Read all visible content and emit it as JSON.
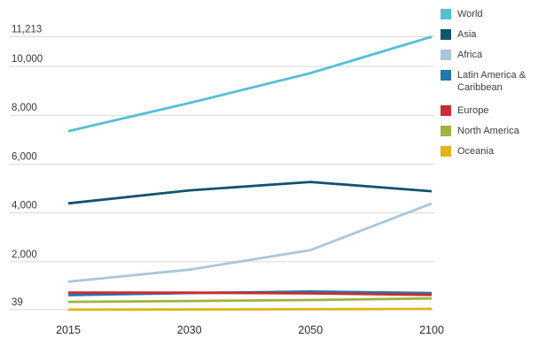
{
  "chart_data": {
    "type": "line",
    "title": "",
    "x_categories": [
      "2015",
      "2030",
      "2050",
      "2100"
    ],
    "series": [
      {
        "name": "World",
        "color": "#55c0d4",
        "values": [
          7349,
          8501,
          9725,
          11213
        ]
      },
      {
        "name": "Asia",
        "color": "#14536e",
        "values": [
          4393,
          4923,
          5267,
          4889
        ]
      },
      {
        "name": "Africa",
        "color": "#a9c7db",
        "values": [
          1186,
          1679,
          2478,
          4387
        ]
      },
      {
        "name": "Latin America & Caribbean",
        "color": "#2478a4",
        "values": [
          634,
          721,
          784,
          721
        ]
      },
      {
        "name": "Europe",
        "color": "#cd2c36",
        "values": [
          738,
          734,
          707,
          646
        ]
      },
      {
        "name": "North America",
        "color": "#a1b33d",
        "values": [
          358,
          396,
          433,
          500
        ]
      },
      {
        "name": "Oceania",
        "color": "#dfb41c",
        "values": [
          39,
          47,
          57,
          71
        ]
      }
    ],
    "y_ticks": [
      {
        "label": "11,213",
        "value": 11213
      },
      {
        "label": "10,000",
        "value": 10000
      },
      {
        "label": "8,000",
        "value": 8000
      },
      {
        "label": "6,000",
        "value": 6000
      },
      {
        "label": "4,000",
        "value": 4000
      },
      {
        "label": "2,000",
        "value": 2000
      },
      {
        "label": "39",
        "value": 39
      }
    ],
    "ylim": [
      0,
      11600
    ],
    "grid": "horizontal",
    "legend_position": "top-right",
    "colors": {
      "grid": "#d9d9d9",
      "tick_text": "#383838"
    }
  },
  "legend": {
    "items": [
      {
        "label": "World"
      },
      {
        "label": "Asia"
      },
      {
        "label": "Africa"
      },
      {
        "label": "Latin America &",
        "label2": "Caribbean"
      },
      {
        "label": "Europe"
      },
      {
        "label": "North America"
      },
      {
        "label": "Oceania"
      }
    ]
  }
}
